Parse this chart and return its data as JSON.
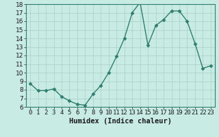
{
  "x": [
    0,
    1,
    2,
    3,
    4,
    5,
    6,
    7,
    8,
    9,
    10,
    11,
    12,
    13,
    14,
    15,
    16,
    17,
    18,
    19,
    20,
    21,
    22,
    23
  ],
  "y": [
    8.7,
    7.9,
    7.9,
    8.1,
    7.2,
    6.7,
    6.3,
    6.2,
    7.5,
    8.5,
    10.0,
    11.9,
    14.0,
    17.0,
    18.2,
    13.2,
    15.5,
    16.2,
    17.2,
    17.2,
    16.0,
    13.4,
    10.5,
    10.8
  ],
  "xlabel": "Humidex (Indice chaleur)",
  "ylim": [
    6,
    18
  ],
  "xlim": [
    -0.5,
    23.5
  ],
  "yticks": [
    6,
    7,
    8,
    9,
    10,
    11,
    12,
    13,
    14,
    15,
    16,
    17,
    18
  ],
  "xticks": [
    0,
    1,
    2,
    3,
    4,
    5,
    6,
    7,
    8,
    9,
    10,
    11,
    12,
    13,
    14,
    15,
    16,
    17,
    18,
    19,
    20,
    21,
    22,
    23
  ],
  "xtick_labels": [
    "0",
    "1",
    "2",
    "3",
    "4",
    "5",
    "6",
    "7",
    "8",
    "9",
    "10",
    "11",
    "12",
    "13",
    "14",
    "15",
    "16",
    "17",
    "18",
    "19",
    "20",
    "21",
    "22",
    "23"
  ],
  "line_color": "#2e7d6e",
  "bg_color": "#c8ebe3",
  "grid_color": "#a8cfc7",
  "marker": "D",
  "marker_size": 2.5,
  "linewidth": 1.0,
  "xlabel_fontsize": 7.5,
  "tick_fontsize": 6.5
}
